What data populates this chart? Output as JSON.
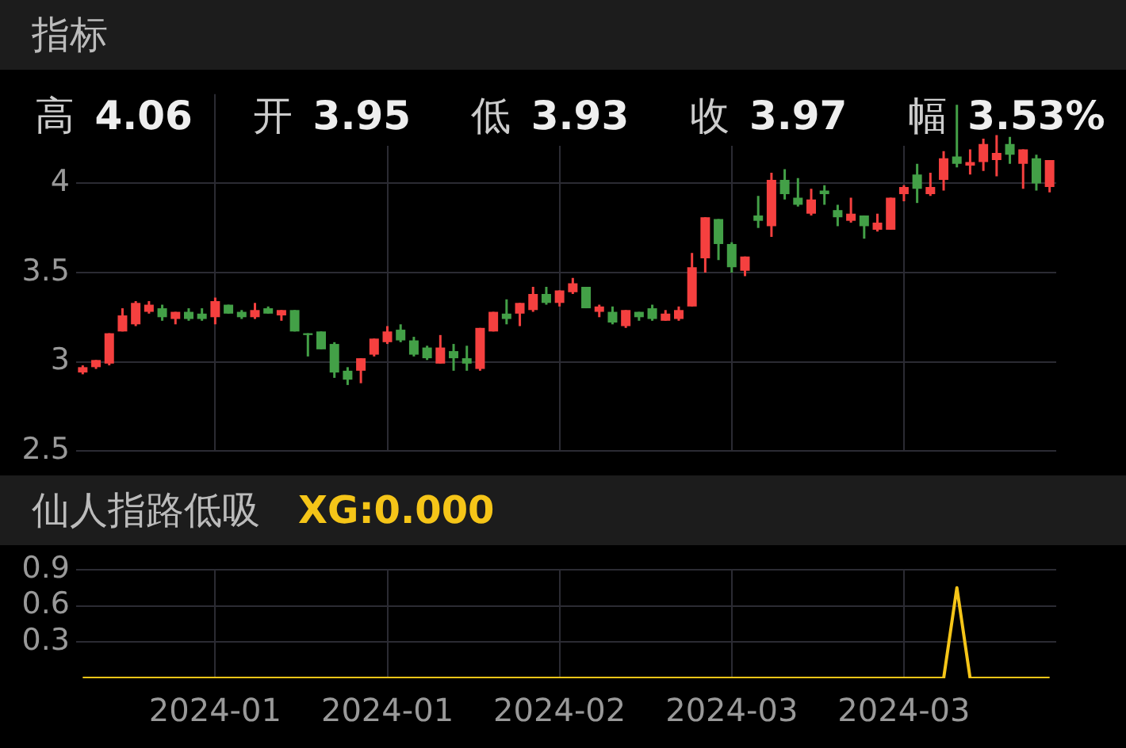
{
  "chart_data": [
    {
      "type": "candlestick",
      "title": "指标",
      "categories": [
        null,
        null,
        null,
        null,
        null,
        null,
        null,
        null,
        null,
        null,
        "2024-01",
        null,
        null,
        null,
        null,
        null,
        null,
        null,
        null,
        null,
        null,
        null,
        null,
        "2024-01",
        null,
        null,
        null,
        null,
        null,
        null,
        null,
        null,
        null,
        null,
        null,
        null,
        "2024-02",
        null,
        null,
        null,
        null,
        null,
        null,
        null,
        null,
        null,
        null,
        null,
        null,
        "2024-03",
        null,
        null,
        null,
        null,
        null,
        null,
        null,
        null,
        null,
        null,
        null,
        null,
        "2024-03",
        null,
        null,
        null,
        null,
        null,
        null,
        null,
        null,
        null,
        null,
        null
      ],
      "ohlc": [
        [
          2.94,
          2.98,
          2.93,
          2.97
        ],
        [
          2.97,
          3.01,
          2.96,
          3.01
        ],
        [
          2.99,
          3.16,
          2.98,
          3.16
        ],
        [
          3.17,
          3.3,
          3.17,
          3.26
        ],
        [
          3.21,
          3.34,
          3.2,
          3.33
        ],
        [
          3.28,
          3.34,
          3.27,
          3.32
        ],
        [
          3.3,
          3.32,
          3.23,
          3.25
        ],
        [
          3.24,
          3.28,
          3.21,
          3.28
        ],
        [
          3.28,
          3.3,
          3.23,
          3.24
        ],
        [
          3.27,
          3.3,
          3.23,
          3.24
        ],
        [
          3.25,
          3.36,
          3.21,
          3.34
        ],
        [
          3.32,
          3.32,
          3.27,
          3.27
        ],
        [
          3.28,
          3.29,
          3.24,
          3.25
        ],
        [
          3.25,
          3.33,
          3.24,
          3.29
        ],
        [
          3.3,
          3.31,
          3.27,
          3.27
        ],
        [
          3.26,
          3.29,
          3.23,
          3.29
        ],
        [
          3.29,
          3.29,
          3.17,
          3.17
        ],
        [
          3.16,
          3.16,
          3.03,
          3.15
        ],
        [
          3.17,
          3.17,
          3.07,
          3.07
        ],
        [
          3.1,
          3.11,
          2.91,
          2.94
        ],
        [
          2.95,
          2.97,
          2.87,
          2.9
        ],
        [
          2.95,
          3.02,
          2.88,
          3.02
        ],
        [
          3.04,
          3.13,
          3.03,
          3.13
        ],
        [
          3.11,
          3.2,
          3.1,
          3.17
        ],
        [
          3.18,
          3.21,
          3.11,
          3.12
        ],
        [
          3.12,
          3.14,
          3.03,
          3.04
        ],
        [
          3.08,
          3.09,
          3.01,
          3.02
        ],
        [
          2.99,
          3.15,
          2.99,
          3.08
        ],
        [
          3.06,
          3.1,
          2.95,
          3.02
        ],
        [
          3.02,
          3.09,
          2.95,
          2.99
        ],
        [
          2.96,
          3.19,
          2.95,
          3.19
        ],
        [
          3.17,
          3.28,
          3.17,
          3.28
        ],
        [
          3.27,
          3.35,
          3.21,
          3.24
        ],
        [
          3.27,
          3.33,
          3.2,
          3.33
        ],
        [
          3.29,
          3.42,
          3.28,
          3.38
        ],
        [
          3.38,
          3.42,
          3.32,
          3.33
        ],
        [
          3.33,
          3.4,
          3.31,
          3.4
        ],
        [
          3.39,
          3.47,
          3.38,
          3.44
        ],
        [
          3.42,
          3.42,
          3.3,
          3.3
        ],
        [
          3.28,
          3.32,
          3.25,
          3.31
        ],
        [
          3.28,
          3.31,
          3.21,
          3.22
        ],
        [
          3.2,
          3.29,
          3.19,
          3.29
        ],
        [
          3.28,
          3.28,
          3.23,
          3.25
        ],
        [
          3.3,
          3.32,
          3.23,
          3.24
        ],
        [
          3.23,
          3.29,
          3.23,
          3.27
        ],
        [
          3.24,
          3.31,
          3.23,
          3.29
        ],
        [
          3.31,
          3.61,
          3.31,
          3.53
        ],
        [
          3.58,
          3.81,
          3.5,
          3.81
        ],
        [
          3.8,
          3.8,
          3.57,
          3.66
        ],
        [
          3.66,
          3.67,
          3.5,
          3.53
        ],
        [
          3.51,
          3.59,
          3.48,
          3.59
        ],
        [
          3.82,
          3.93,
          3.75,
          3.79
        ],
        [
          3.76,
          4.06,
          3.7,
          4.02
        ],
        [
          4.02,
          4.08,
          3.91,
          3.94
        ],
        [
          3.92,
          4.03,
          3.87,
          3.88
        ],
        [
          3.83,
          3.97,
          3.82,
          3.91
        ],
        [
          3.96,
          3.99,
          3.88,
          3.94
        ],
        [
          3.85,
          3.88,
          3.76,
          3.81
        ],
        [
          3.79,
          3.92,
          3.78,
          3.83
        ],
        [
          3.82,
          3.82,
          3.69,
          3.76
        ],
        [
          3.74,
          3.83,
          3.73,
          3.78
        ],
        [
          3.74,
          3.92,
          3.74,
          3.92
        ],
        [
          3.94,
          3.99,
          3.9,
          3.98
        ],
        [
          4.05,
          4.11,
          3.89,
          3.97
        ],
        [
          3.94,
          4.06,
          3.93,
          3.98
        ],
        [
          4.02,
          4.18,
          3.96,
          4.14
        ],
        [
          4.15,
          4.44,
          4.09,
          4.11
        ],
        [
          4.1,
          4.19,
          4.05,
          4.12
        ],
        [
          4.12,
          4.25,
          4.07,
          4.22
        ],
        [
          4.13,
          4.27,
          4.04,
          4.17
        ],
        [
          4.22,
          4.26,
          4.11,
          4.16
        ],
        [
          4.11,
          4.19,
          3.97,
          4.19
        ],
        [
          4.14,
          4.16,
          3.96,
          4.0
        ],
        [
          3.98,
          4.13,
          3.95,
          4.13
        ]
      ],
      "colors": [
        "#f5403f",
        "#f5403f",
        "#f5403f",
        "#f5403f",
        "#f5403f",
        "#f5403f",
        "#43a047",
        "#f5403f",
        "#43a047",
        "#43a047",
        "#f5403f",
        "#43a047",
        "#43a047",
        "#f5403f",
        "#43a047",
        "#f5403f",
        "#43a047",
        "#43a047",
        "#43a047",
        "#43a047",
        "#43a047",
        "#f5403f",
        "#f5403f",
        "#f5403f",
        "#43a047",
        "#43a047",
        "#43a047",
        "#f5403f",
        "#43a047",
        "#43a047",
        "#f5403f",
        "#f5403f",
        "#43a047",
        "#f5403f",
        "#f5403f",
        "#43a047",
        "#f5403f",
        "#f5403f",
        "#43a047",
        "#f5403f",
        "#43a047",
        "#f5403f",
        "#43a047",
        "#43a047",
        "#f5403f",
        "#f5403f",
        "#f5403f",
        "#f5403f",
        "#43a047",
        "#43a047",
        "#f5403f",
        "#43a047",
        "#f5403f",
        "#43a047",
        "#43a047",
        "#f5403f",
        "#43a047",
        "#43a047",
        "#f5403f",
        "#43a047",
        "#f5403f",
        "#f5403f",
        "#f5403f",
        "#43a047",
        "#f5403f",
        "#f5403f",
        "#43a047",
        "#f5403f",
        "#f5403f",
        "#f5403f",
        "#43a047",
        "#f5403f",
        "#43a047",
        "#f5403f"
      ],
      "ylim": [
        2.5,
        4.5
      ],
      "yticks": [
        2.5,
        3,
        3.5,
        4
      ],
      "grid": true,
      "tick_labels": "y",
      "annotations": [
        "高 4.06",
        "开 3.95",
        "低 3.93",
        "收 3.97",
        "幅 3.53%"
      ]
    },
    {
      "type": "line",
      "title": "仙人指路低吸",
      "categories": [
        null,
        null,
        null,
        null,
        null,
        null,
        null,
        null,
        null,
        null,
        "2024-01",
        null,
        null,
        null,
        null,
        null,
        null,
        null,
        null,
        null,
        null,
        null,
        null,
        "2024-01",
        null,
        null,
        null,
        null,
        null,
        null,
        null,
        null,
        null,
        null,
        null,
        null,
        "2024-02",
        null,
        null,
        null,
        null,
        null,
        null,
        null,
        null,
        null,
        null,
        null,
        null,
        "2024-03",
        null,
        null,
        null,
        null,
        null,
        null,
        null,
        null,
        null,
        null,
        null,
        null,
        "2024-03",
        null,
        null,
        null,
        null,
        null,
        null,
        null,
        null,
        null,
        null,
        null
      ],
      "series": [
        {
          "color": "#f5c518",
          "values": [
            0,
            0,
            0,
            0,
            0,
            0,
            0,
            0,
            0,
            0,
            0,
            0,
            0,
            0,
            0,
            0,
            0,
            0,
            0,
            0,
            0,
            0,
            0,
            0,
            0,
            0,
            0,
            0,
            0,
            0,
            0,
            0,
            0,
            0,
            0,
            0,
            0,
            0,
            0,
            0,
            0,
            0,
            0,
            0,
            0,
            0,
            0,
            0,
            0,
            0,
            0,
            0,
            0,
            0,
            0,
            0,
            0,
            0,
            0,
            0,
            0,
            0,
            0,
            0,
            0,
            0,
            0.75,
            0,
            0,
            0,
            0,
            0,
            0,
            0
          ]
        }
      ],
      "ylim": [
        0,
        0.9
      ],
      "yticks": [
        0.3,
        0.6,
        0.9
      ],
      "grid": true,
      "annotations": [
        "XG:0.000"
      ]
    }
  ]
}
